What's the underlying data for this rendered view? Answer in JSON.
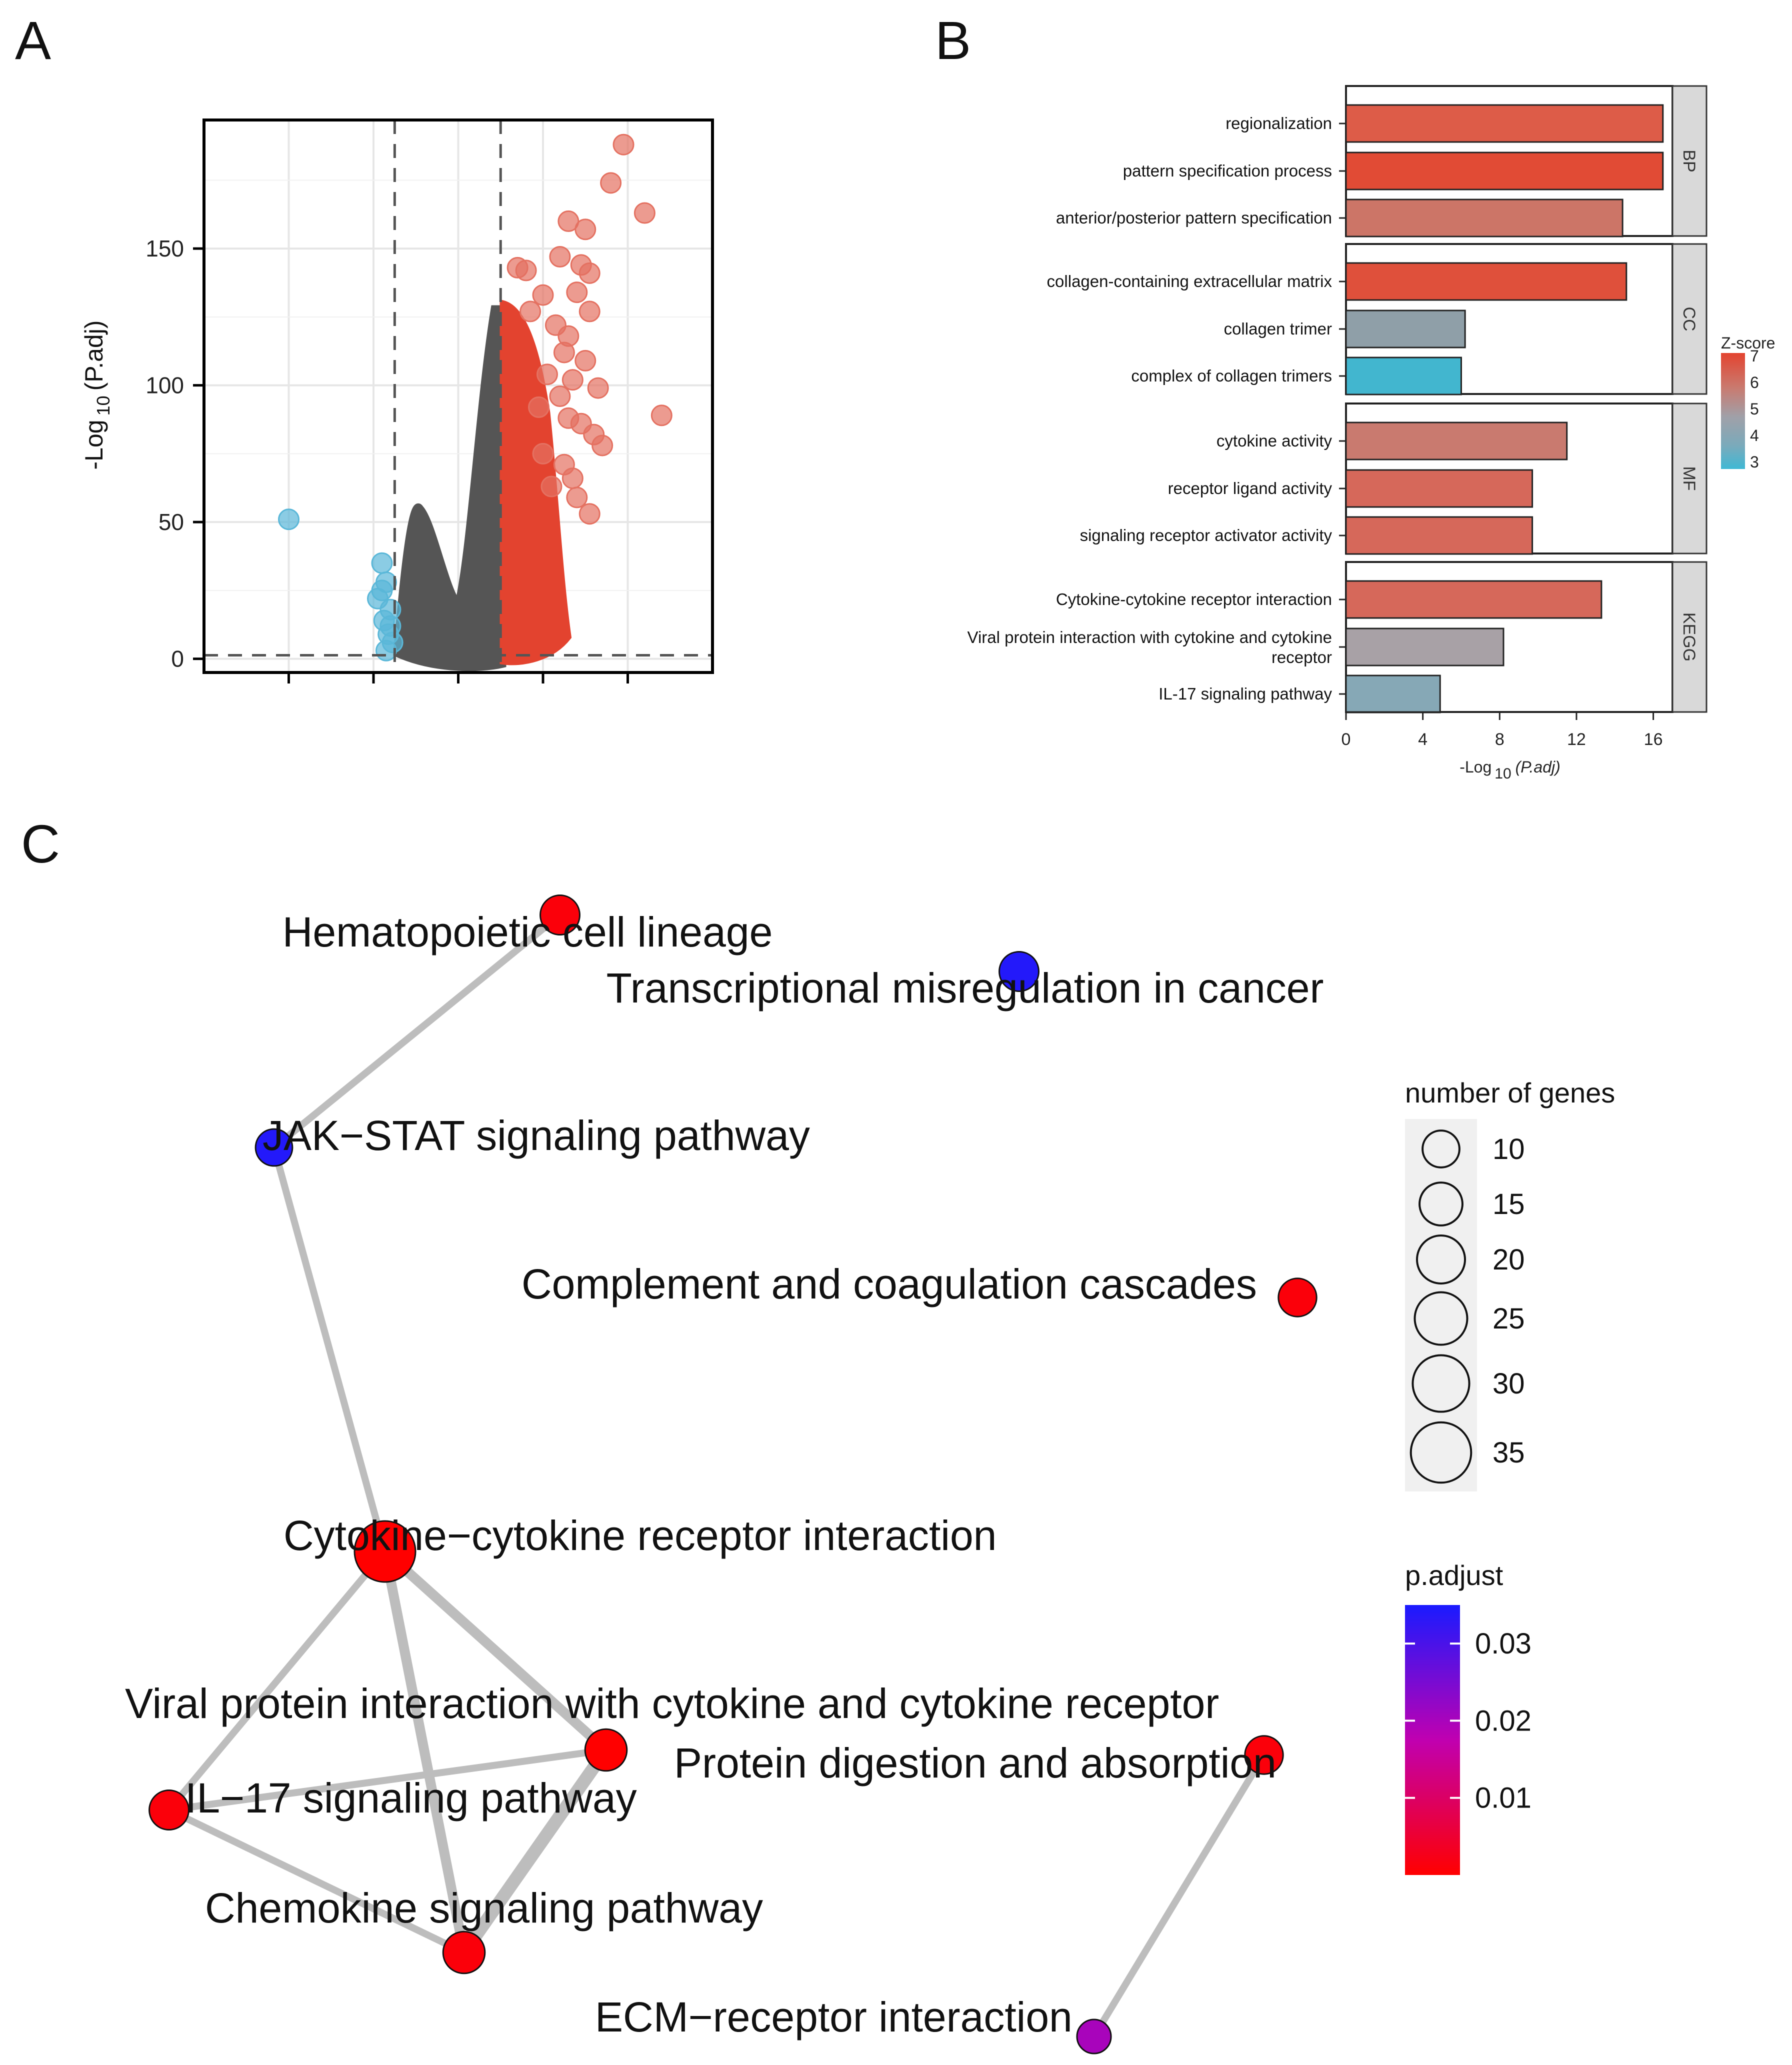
{
  "panels": {
    "a": "A",
    "b": "B",
    "c": "C"
  },
  "chart_data": [
    {
      "panel": "A",
      "type": "scatter",
      "ylabel_prefix": "-Log",
      "ylabel_sub": "10",
      "ylabel_suffix": "(P.adj)",
      "yticks": [
        0,
        50,
        100,
        150
      ],
      "ylim": [
        -5,
        197
      ],
      "xlim": [
        -6,
        6
      ],
      "threshold_x": [
        -1.5,
        1
      ],
      "threshold_y": 1.3,
      "grid": true,
      "colors": {
        "down": "#5ab7d8",
        "ns": "#555555",
        "up": "#e3432f",
        "up_large": "#e47161"
      },
      "series": [
        {
          "group": "down",
          "points": [
            [
              -4.0,
              51
            ],
            [
              -1.8,
              35
            ],
            [
              -1.7,
              28
            ],
            [
              -1.9,
              22
            ],
            [
              -1.6,
              18
            ],
            [
              -1.75,
              14
            ],
            [
              -1.65,
              9
            ],
            [
              -1.55,
              6
            ],
            [
              -1.7,
              3
            ],
            [
              -1.6,
              12
            ],
            [
              -1.8,
              25
            ]
          ]
        },
        {
          "group": "up_large",
          "points": [
            [
              3.9,
              188
            ],
            [
              3.6,
              174
            ],
            [
              4.4,
              163
            ],
            [
              2.6,
              160
            ],
            [
              3.0,
              157
            ],
            [
              2.4,
              147
            ],
            [
              2.9,
              144
            ],
            [
              1.4,
              143
            ],
            [
              1.6,
              142
            ],
            [
              3.1,
              141
            ],
            [
              2.0,
              133
            ],
            [
              2.8,
              134
            ],
            [
              3.1,
              127
            ],
            [
              2.3,
              122
            ],
            [
              2.6,
              118
            ],
            [
              3.0,
              109
            ],
            [
              2.7,
              102
            ],
            [
              3.3,
              99
            ],
            [
              2.4,
              96
            ],
            [
              2.6,
              88
            ],
            [
              2.9,
              86
            ],
            [
              3.2,
              82
            ],
            [
              4.8,
              89
            ],
            [
              3.4,
              78
            ],
            [
              2.5,
              71
            ],
            [
              2.7,
              66
            ],
            [
              2.8,
              59
            ],
            [
              3.1,
              53
            ],
            [
              2.2,
              63
            ],
            [
              2.0,
              75
            ],
            [
              1.9,
              92
            ],
            [
              2.1,
              104
            ],
            [
              2.5,
              112
            ],
            [
              1.7,
              127
            ]
          ]
        }
      ]
    },
    {
      "panel": "B",
      "type": "bar",
      "orientation": "horizontal",
      "xlabel_prefix": "-Log",
      "xlabel_sub": "10",
      "xlabel_suffix": "(P.adj)",
      "xticks": [
        0,
        4,
        8,
        12,
        16
      ],
      "xlim": [
        0,
        17
      ],
      "facets": [
        {
          "name": "BP",
          "bars": [
            {
              "term": "regionalization",
              "value": 16.5,
              "color": "#dd5c48"
            },
            {
              "term": "pattern specification process",
              "value": 16.5,
              "color": "#e14b35"
            },
            {
              "term": "anterior/posterior pattern specification",
              "value": 14.4,
              "color": "#cc7567"
            }
          ]
        },
        {
          "name": "CC",
          "bars": [
            {
              "term": "collagen-containing extracellular matrix",
              "value": 14.6,
              "color": "#df503b"
            },
            {
              "term": "collagen trimer",
              "value": 6.2,
              "color": "#8f9fa8"
            },
            {
              "term": "complex of collagen trimers",
              "value": 6.0,
              "color": "#42b6cf"
            }
          ]
        },
        {
          "name": "MF",
          "bars": [
            {
              "term": "cytokine activity",
              "value": 11.5,
              "color": "#c97a6f"
            },
            {
              "term": "receptor ligand activity",
              "value": 9.7,
              "color": "#d6685a"
            },
            {
              "term": "signaling receptor activator activity",
              "value": 9.7,
              "color": "#d6685a"
            }
          ]
        },
        {
          "name": "KEGG",
          "bars": [
            {
              "term": "Cytokine-cytokine receptor interaction",
              "value": 13.3,
              "color": "#d6685a"
            },
            {
              "term": "Viral protein interaction with cytokine and cytokine|receptor",
              "value": 8.2,
              "color": "#a8a1a6"
            },
            {
              "term": "IL-17 signaling pathway",
              "value": 4.9,
              "color": "#86a8b6"
            }
          ]
        }
      ],
      "zscore_legend": {
        "title": "Z-score",
        "ticks": [
          7,
          6,
          5,
          4,
          3
        ],
        "colors": [
          "#e3432f",
          "#c97a6f",
          "#a0a0a8",
          "#7aaabb",
          "#3fb8d4"
        ]
      }
    },
    {
      "panel": "C",
      "type": "network",
      "nodes": [
        {
          "id": "hematopoietic",
          "label": "Hematopoietic cell lineage",
          "genes": 12,
          "p_adjust": 0.001
        },
        {
          "id": "transcriptional",
          "label": "Transcriptional misregulation in cancer",
          "genes": 12,
          "p_adjust": 0.034
        },
        {
          "id": "jakstat",
          "label": "JAK−STAT signaling pathway",
          "genes": 10,
          "p_adjust": 0.034
        },
        {
          "id": "complement",
          "label": "Complement and coagulation cascades",
          "genes": 11,
          "p_adjust": 0.001
        },
        {
          "id": "cytokine",
          "label": "Cytokine−cytokine receptor interaction",
          "genes": 36,
          "p_adjust": 0.0
        },
        {
          "id": "viral",
          "label": "Viral protein interaction with cytokine and cytokine receptor",
          "genes": 14,
          "p_adjust": 0.0
        },
        {
          "id": "protein",
          "label": "Protein digestion and absorption",
          "genes": 11,
          "p_adjust": 0.001
        },
        {
          "id": "il17",
          "label": "IL−17 signaling pathway",
          "genes": 12,
          "p_adjust": 0.001
        },
        {
          "id": "chemokine",
          "label": "Chemokine signaling pathway",
          "genes": 14,
          "p_adjust": 0.001
        },
        {
          "id": "ecm",
          "label": "ECM−receptor interaction",
          "genes": 8,
          "p_adjust": 0.02
        }
      ],
      "edges": [
        {
          "source": "hematopoietic",
          "target": "jakstat",
          "weight": 1
        },
        {
          "source": "jakstat",
          "target": "cytokine",
          "weight": 1
        },
        {
          "source": "cytokine",
          "target": "il17",
          "weight": 1
        },
        {
          "source": "cytokine",
          "target": "viral",
          "weight": 2
        },
        {
          "source": "cytokine",
          "target": "chemokine",
          "weight": 2
        },
        {
          "source": "il17",
          "target": "viral",
          "weight": 1
        },
        {
          "source": "il17",
          "target": "chemokine",
          "weight": 1
        },
        {
          "source": "viral",
          "target": "chemokine",
          "weight": 3
        },
        {
          "source": "protein",
          "target": "ecm",
          "weight": 1
        }
      ],
      "size_legend": {
        "title": "number of genes",
        "values": [
          10,
          15,
          20,
          25,
          30,
          35
        ]
      },
      "color_legend": {
        "title": "p.adjust",
        "ticks": [
          "0.03",
          "0.02",
          "0.01"
        ],
        "tick_values": [
          0.03,
          0.02,
          0.01
        ],
        "range": [
          0.0,
          0.035
        ],
        "low_color": "#ff0000",
        "high_color": "#1a1aff"
      }
    }
  ]
}
